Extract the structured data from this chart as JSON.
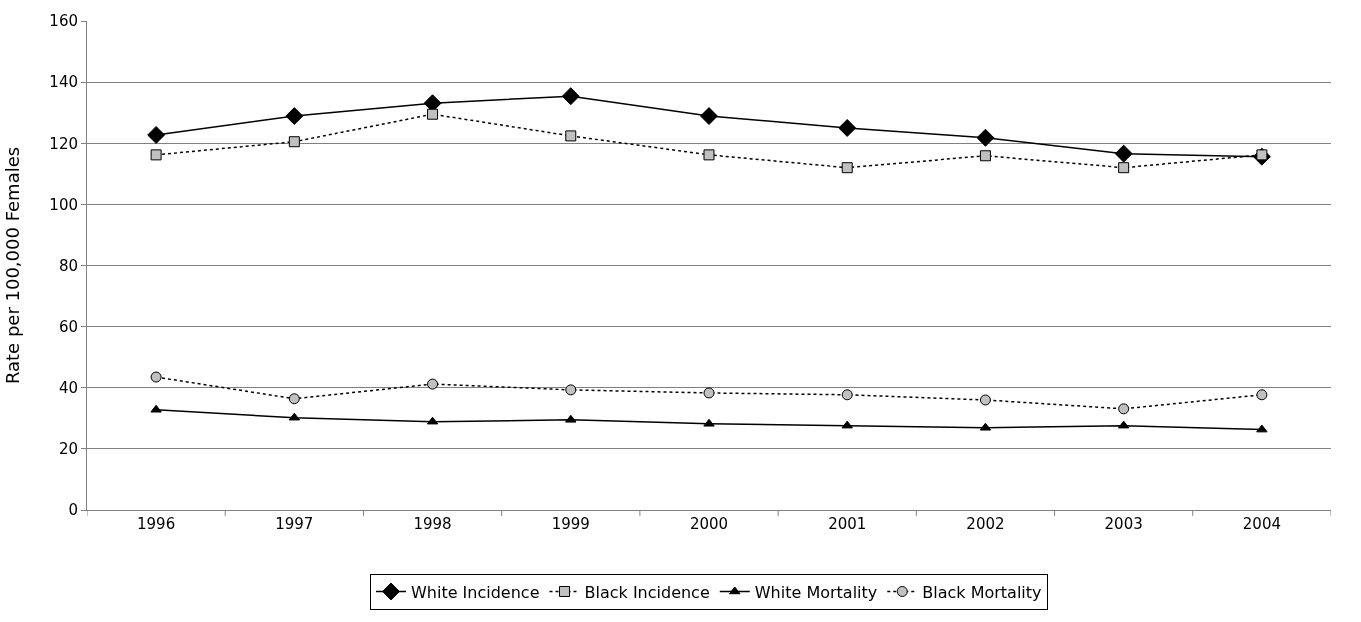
{
  "chart_data": {
    "type": "line",
    "ylabel": "Rate per 100,000 Females",
    "categories": [
      "1996",
      "1997",
      "1998",
      "1999",
      "2000",
      "2001",
      "2002",
      "2003",
      "2004"
    ],
    "series": [
      {
        "name": "White Incidence",
        "color": "#000000",
        "marker": "diamond",
        "line_style": "solid",
        "values": [
          122.7,
          128.9,
          133.1,
          135.4,
          128.9,
          125.0,
          121.8,
          116.6,
          115.6
        ]
      },
      {
        "name": "Black Incidence",
        "color": "#c0c0c0",
        "marker": "square",
        "line_style": "dotted",
        "values": [
          116.2,
          120.5,
          129.5,
          122.4,
          116.2,
          112.0,
          115.9,
          112.0,
          116.2
        ]
      },
      {
        "name": "White Mortality",
        "color": "#000000",
        "marker": "triangle",
        "line_style": "solid",
        "values": [
          32.8,
          30.2,
          28.9,
          29.5,
          28.2,
          27.6,
          26.9,
          27.6,
          26.3
        ]
      },
      {
        "name": "Black Mortality",
        "color": "#c0c0c0",
        "marker": "circle",
        "line_style": "dotted",
        "values": [
          43.5,
          36.4,
          41.2,
          39.3,
          38.3,
          37.7,
          36.0,
          33.1,
          37.7
        ]
      }
    ],
    "ylim": [
      0,
      160
    ],
    "yticks": [
      0,
      20,
      40,
      60,
      80,
      100,
      120,
      140,
      160
    ],
    "grid": "y",
    "legend": "bottom"
  }
}
